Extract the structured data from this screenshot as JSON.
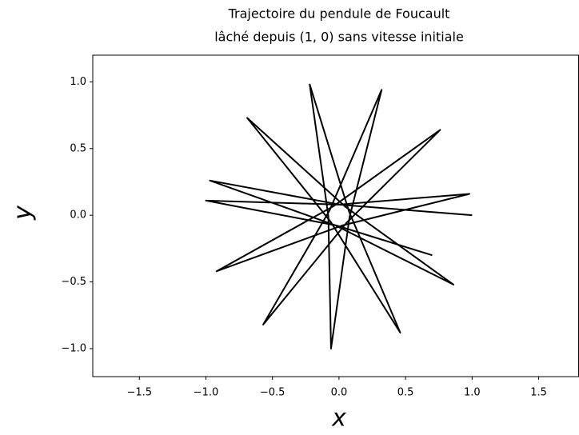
{
  "chart_data": {
    "type": "line",
    "title": "Trajectoire du pendule de Foucault",
    "subtitle": "lâché depuis (1, 0) sans vitesse initiale",
    "xlabel": "x",
    "ylabel": "y",
    "series": [
      {
        "color": "#000000",
        "x": [
          1.0,
          0.01,
          -0.97,
          -0.031,
          0.86,
          0.05,
          -0.69,
          -0.065,
          0.46,
          0.075,
          -0.22,
          -0.08,
          -0.06,
          0.079,
          0.32,
          -0.071,
          -0.57,
          0.059,
          0.76,
          -0.043,
          -0.92,
          0.023,
          0.98,
          -0.002,
          -1.0,
          -0.02,
          0.7
        ],
        "values": [
          0.0,
          0.079,
          0.26,
          -0.074,
          -0.52,
          0.062,
          0.73,
          -0.046,
          -0.88,
          0.028,
          0.98,
          -0.007,
          -1.0,
          -0.015,
          0.94,
          0.036,
          -0.82,
          -0.054,
          0.64,
          0.067,
          -0.42,
          -0.077,
          0.16,
          0.08,
          0.11,
          -0.077,
          -0.3
        ]
      }
    ],
    "xlim": [
      -1.85,
      1.8
    ],
    "ylim": [
      -1.21,
      1.2
    ],
    "xticks": [
      {
        "value": -1.5,
        "label": "−1.5"
      },
      {
        "value": -1.0,
        "label": "−1.0"
      },
      {
        "value": -0.5,
        "label": "−0.5"
      },
      {
        "value": 0.0,
        "label": "0.0"
      },
      {
        "value": 0.5,
        "label": "0.5"
      },
      {
        "value": 1.0,
        "label": "1.0"
      },
      {
        "value": 1.5,
        "label": "1.5"
      }
    ],
    "yticks": [
      {
        "value": -1.0,
        "label": "−1.0"
      },
      {
        "value": -0.5,
        "label": "−0.5"
      },
      {
        "value": 0.0,
        "label": "0.0"
      },
      {
        "value": 0.5,
        "label": "0.5"
      },
      {
        "value": 1.0,
        "label": "1.0"
      }
    ],
    "grid": false
  }
}
